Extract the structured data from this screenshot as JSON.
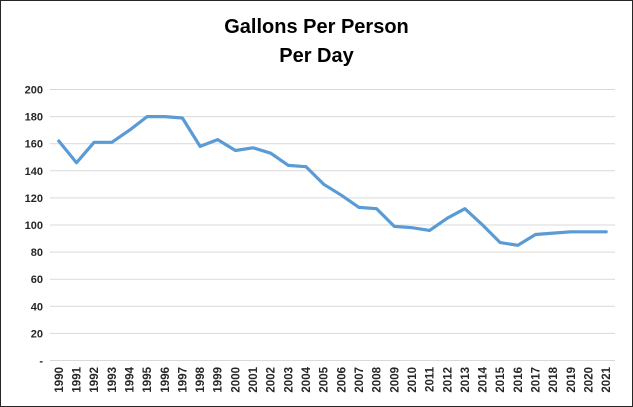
{
  "chart_data": {
    "type": "line",
    "title_lines": [
      "Gallons Per Person",
      "Per Day"
    ],
    "categories": [
      "1990",
      "1991",
      "1992",
      "1993",
      "1994",
      "1995",
      "1996",
      "1997",
      "1998",
      "1999",
      "2000",
      "2001",
      "2002",
      "2003",
      "2004",
      "2005",
      "2006",
      "2007",
      "2008",
      "2009",
      "2010",
      "2011",
      "2012",
      "2013",
      "2014",
      "2015",
      "2016",
      "2017",
      "2018",
      "2019",
      "2020",
      "2021"
    ],
    "values": [
      162,
      146,
      161,
      161,
      170,
      180,
      180,
      179,
      158,
      163,
      155,
      157,
      153,
      144,
      143,
      130,
      122,
      113,
      112,
      99,
      98,
      96,
      105,
      112,
      100,
      87,
      85,
      93,
      94,
      95,
      95,
      95
    ],
    "y_ticks": [
      {
        "label": "200",
        "value": 200
      },
      {
        "label": "180",
        "value": 180
      },
      {
        "label": "160",
        "value": 160
      },
      {
        "label": "140",
        "value": 140
      },
      {
        "label": "120",
        "value": 120
      },
      {
        "label": "100",
        "value": 100
      },
      {
        "label": "80",
        "value": 80
      },
      {
        "label": "60",
        "value": 60
      },
      {
        "label": "40",
        "value": 40
      },
      {
        "label": "20",
        "value": 20
      },
      {
        "label": "-",
        "value": 0
      }
    ],
    "ylim": [
      0,
      200
    ],
    "xlabel": "",
    "ylabel": "",
    "grid": "horizontal",
    "legend": "none",
    "colors": {
      "line": "#5B9BD5",
      "gridline": "#D9D9D9",
      "axis_line": "#D9D9D9",
      "tick_text": "#262626",
      "frame_border": "#262626",
      "background": "#FFFFFF"
    }
  }
}
